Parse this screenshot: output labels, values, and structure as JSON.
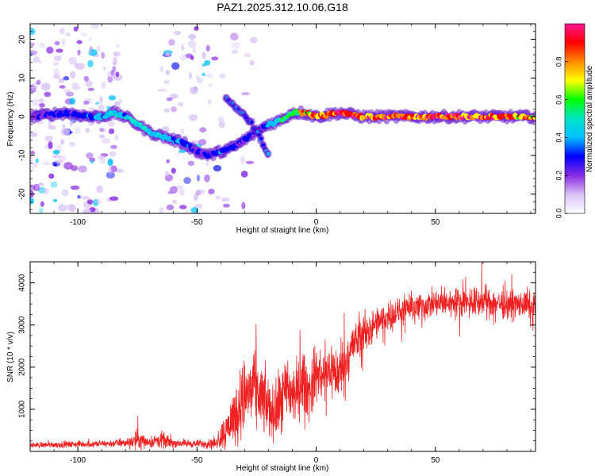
{
  "chart_data": [
    {
      "type": "heatmap",
      "title": "PAZ1.2025.312.10.06.G18",
      "xlabel": "Height of straight line (km)",
      "ylabel": "Frequency (Hz)",
      "xlim": [
        -120,
        92
      ],
      "ylim": [
        -25,
        24
      ],
      "xticks": [
        -100,
        -50,
        0,
        50
      ],
      "yticks": [
        -20,
        -10,
        0,
        10,
        20
      ],
      "colorbar": {
        "label": "Normalized spectral amplitude",
        "range": [
          0,
          1
        ],
        "ticks": [
          0.0,
          0.2,
          0.4,
          0.6,
          0.8
        ],
        "tick_labels": [
          "0.0",
          "0.2",
          "0.4",
          "0.6",
          "0.8"
        ],
        "colormap": [
          "#ffffff",
          "#d9c2f5",
          "#8a2be2",
          "#0000ff",
          "#00bfff",
          "#00e5c8",
          "#00ff00",
          "#ffff00",
          "#ff8c00",
          "#ff0000",
          "#ff1493"
        ]
      },
      "ridge": {
        "x": [
          -120,
          -105,
          -95,
          -90,
          -85,
          -80,
          -75,
          -70,
          -65,
          -60,
          -55,
          -50,
          -45,
          -40,
          -35,
          -30,
          -25,
          -20,
          -15,
          -10,
          -5,
          0,
          10,
          20,
          30,
          40,
          50,
          60,
          70,
          80,
          92
        ],
        "y": [
          0,
          1,
          0,
          0,
          1,
          0,
          -2,
          -4,
          -5,
          -6,
          -7,
          -9,
          -10,
          -9,
          -8,
          -6,
          -4,
          -2,
          -1,
          1,
          1,
          0,
          1,
          0,
          0,
          0,
          0,
          0,
          0,
          0,
          0
        ],
        "amp": [
          0.25,
          0.3,
          0.35,
          0.4,
          0.45,
          0.45,
          0.5,
          0.5,
          0.45,
          0.35,
          0.35,
          0.3,
          0.3,
          0.35,
          0.3,
          0.3,
          0.3,
          0.35,
          0.5,
          0.65,
          0.8,
          0.9,
          0.95,
          0.95,
          0.9,
          0.9,
          0.95,
          0.95,
          0.9,
          0.85,
          0.8
        ]
      },
      "branch": {
        "x": [
          -38,
          -33,
          -28,
          -24,
          -20
        ],
        "y": [
          5,
          2,
          -1,
          -5,
          -10
        ]
      }
    },
    {
      "type": "line",
      "xlabel": "Height of straight line (km)",
      "ylabel": "SNR (10 * v/v)",
      "xlim": [
        -120,
        92
      ],
      "ylim": [
        0,
        4500
      ],
      "xticks": [
        -100,
        -50,
        0,
        50
      ],
      "yticks": [
        1000,
        2000,
        3000,
        4000
      ],
      "line_color": "#ee2222",
      "envelope": {
        "x": [
          -120,
          -90,
          -80,
          -75,
          -70,
          -65,
          -60,
          -50,
          -42,
          -38,
          -34,
          -30,
          -26,
          -22,
          -18,
          -15,
          -12,
          -9,
          -6,
          -3,
          0,
          3,
          6,
          9,
          12,
          15,
          20,
          25,
          30,
          40,
          50,
          60,
          70,
          80,
          92
        ],
        "mean": [
          150,
          180,
          200,
          280,
          220,
          260,
          200,
          180,
          200,
          500,
          900,
          1300,
          1500,
          1200,
          900,
          1100,
          1500,
          1300,
          1700,
          1400,
          1900,
          1700,
          2000,
          1800,
          2100,
          2500,
          2800,
          3000,
          3200,
          3400,
          3500,
          3550,
          3550,
          3500,
          3450
        ],
        "spread": [
          100,
          120,
          150,
          350,
          200,
          300,
          150,
          130,
          200,
          700,
          1000,
          1400,
          1300,
          1200,
          900,
          1200,
          1300,
          1100,
          1100,
          1000,
          1000,
          1000,
          1000,
          1000,
          900,
          800,
          700,
          600,
          500,
          500,
          500,
          500,
          550,
          500,
          500
        ]
      }
    }
  ]
}
